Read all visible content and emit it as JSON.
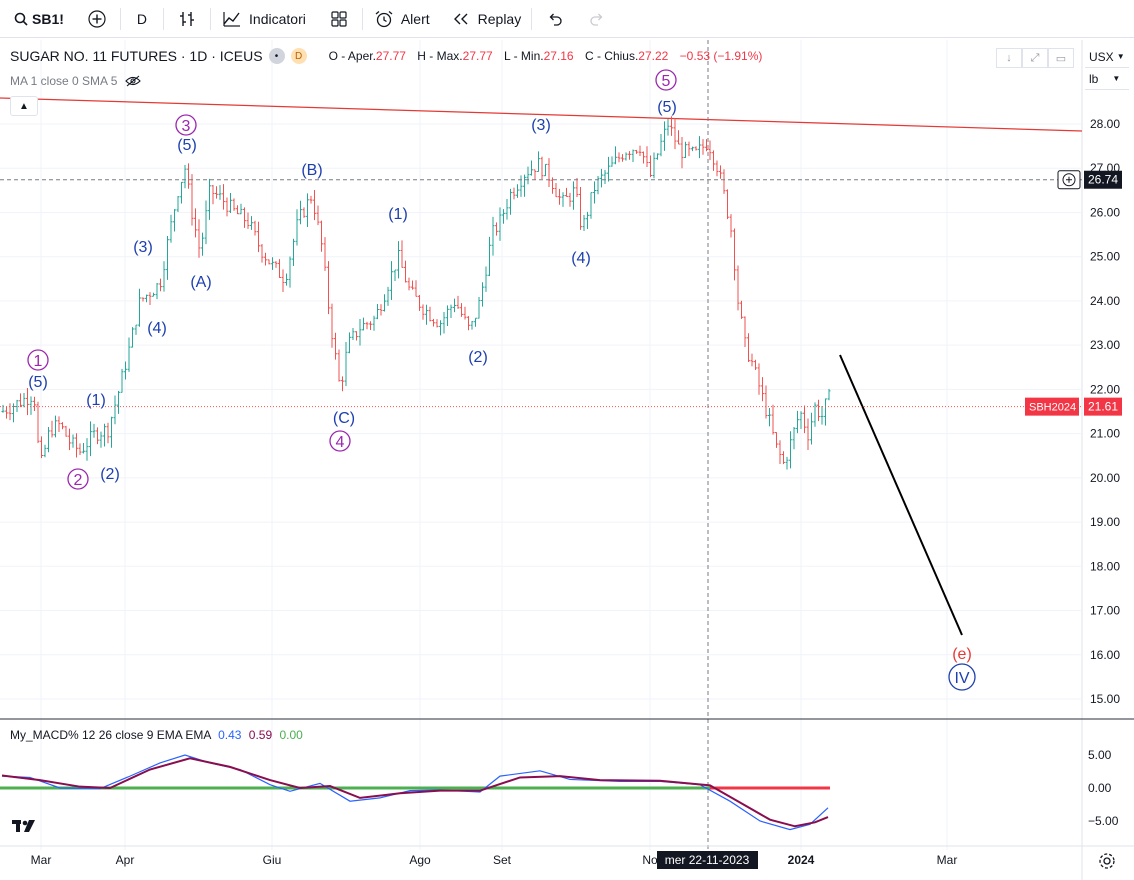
{
  "toolbar": {
    "symbol": "SB1!",
    "interval": "D",
    "indicators_label": "Indicatori",
    "alert_label": "Alert",
    "replay_label": "Replay"
  },
  "legend": {
    "title": "SUGAR NO. 11 FUTURES · 1D · ICEUS",
    "badge": "D",
    "open_key": "O - Aper.",
    "open": "27.77",
    "high_key": "H - Max.",
    "high": "27.77",
    "low_key": "L - Min.",
    "low": "27.16",
    "close_key": "C - Chius.",
    "close": "27.22",
    "change": "−0.53 (−1.91%)",
    "indicator": "MA 1 close 0 SMA 5"
  },
  "right_panel": {
    "currency": "USX",
    "unit": "lb"
  },
  "price_axis": {
    "ticks": [
      "28.00",
      "27.00",
      "26.00",
      "25.00",
      "24.00",
      "23.00",
      "22.00",
      "21.00",
      "20.00",
      "19.00",
      "18.00",
      "17.00",
      "16.00",
      "15.00"
    ],
    "crosshair_price": "26.74",
    "symbol_tag": "SBH2024",
    "last_price": "21.61"
  },
  "time_axis": {
    "labels": [
      "Mar",
      "Apr",
      "Giu",
      "Ago",
      "Set",
      "No",
      "2024",
      "Mar"
    ],
    "crosshair_date": "mer 22-11-2023"
  },
  "macd": {
    "legend": "My_MACD% 12 26 close 9 EMA EMA",
    "v1": "0.43",
    "v2": "0.59",
    "v3": "0.00",
    "ticks": [
      "5.00",
      "0.00",
      "−5.00"
    ]
  },
  "wave_labels": [
    {
      "text": "1",
      "circled": true,
      "color": "#9c27b0"
    },
    {
      "text": "(5)",
      "circled": false,
      "color": "#1e40af"
    },
    {
      "text": "2",
      "circled": true,
      "color": "#9c27b0"
    },
    {
      "text": "(1)",
      "circled": false,
      "color": "#1e40af"
    },
    {
      "text": "(2)",
      "circled": false,
      "color": "#1e40af"
    },
    {
      "text": "(3)",
      "circled": false,
      "color": "#1e40af"
    },
    {
      "text": "(4)",
      "circled": false,
      "color": "#1e40af"
    },
    {
      "text": "3",
      "circled": true,
      "color": "#9c27b0"
    },
    {
      "text": "(5)",
      "circled": false,
      "color": "#1e40af"
    },
    {
      "text": "(A)",
      "circled": false,
      "color": "#1e40af"
    },
    {
      "text": "(B)",
      "circled": false,
      "color": "#1e40af"
    },
    {
      "text": "(C)",
      "circled": false,
      "color": "#1e40af"
    },
    {
      "text": "4",
      "circled": true,
      "color": "#9c27b0"
    },
    {
      "text": "(1)",
      "circled": false,
      "color": "#1e40af"
    },
    {
      "text": "(2)",
      "circled": false,
      "color": "#1e40af"
    },
    {
      "text": "(3)",
      "circled": false,
      "color": "#1e40af"
    },
    {
      "text": "(4)",
      "circled": false,
      "color": "#1e40af"
    },
    {
      "text": "5",
      "circled": true,
      "color": "#9c27b0"
    },
    {
      "text": "(5)",
      "circled": false,
      "color": "#1e40af"
    },
    {
      "text": "(e)",
      "circled": false,
      "color": "#e53935"
    },
    {
      "text": "IV",
      "circled": true,
      "color": "#1e40af"
    }
  ],
  "colors": {
    "up": "#26a69a",
    "down": "#ef5350",
    "trendline": "#e53935",
    "macd_line": "#2962ff",
    "signal_line": "#880e4f",
    "zero_up": "#4caf50",
    "zero_down": "#f23645"
  }
}
